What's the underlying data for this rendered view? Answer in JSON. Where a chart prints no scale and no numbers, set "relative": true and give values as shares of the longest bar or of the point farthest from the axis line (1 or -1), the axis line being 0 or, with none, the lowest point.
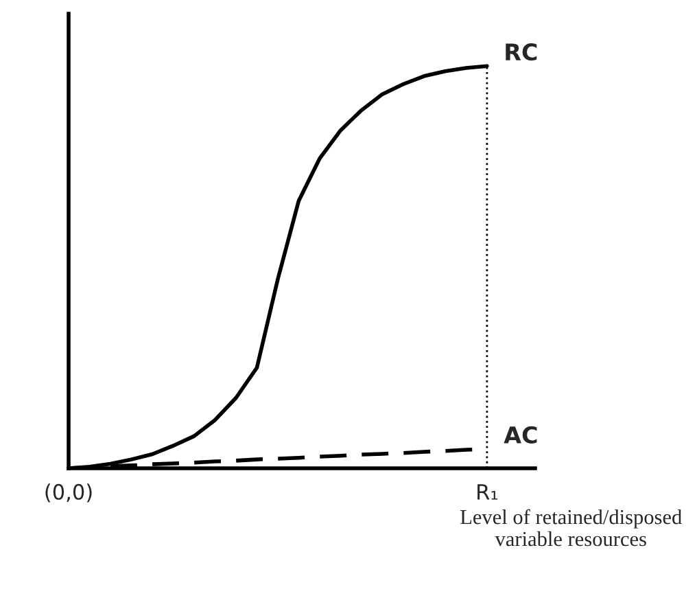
{
  "chart_data": {
    "type": "line",
    "relative": true,
    "xlabel": "Level of retained/disposed\nvariable resources",
    "categories": [
      "(0,0)",
      null,
      null,
      null,
      null,
      null,
      null,
      null,
      null,
      null,
      null,
      null,
      null,
      null,
      null,
      null,
      null,
      null,
      null,
      null,
      "R₁"
    ],
    "tick_labels": "x",
    "grid": false,
    "legend": false,
    "marker": "none",
    "series": [
      {
        "name": "RC",
        "color": "#000000",
        "line_style": "solid",
        "values": [
          0,
          0.004,
          0.011,
          0.022,
          0.035,
          0.056,
          0.08,
          0.12,
          0.175,
          0.25,
          0.47,
          0.665,
          0.77,
          0.84,
          0.89,
          0.93,
          0.955,
          0.975,
          0.987,
          0.995,
          1
        ]
      },
      {
        "name": "AC",
        "color": "#000000",
        "line_style": "dashed",
        "values": [
          0,
          0.002,
          0.005,
          0.007,
          0.01,
          0.012,
          0.014,
          0.017,
          0.019,
          0.022,
          0.024,
          0.026,
          0.029,
          0.031,
          0.034,
          0.036,
          0.038,
          0.041,
          0.043,
          0.046,
          0.048
        ]
      }
    ],
    "ref_lines": [
      {
        "axis": "x",
        "value": "R₁",
        "line_style": "dotted",
        "color": "#000000"
      }
    ]
  }
}
